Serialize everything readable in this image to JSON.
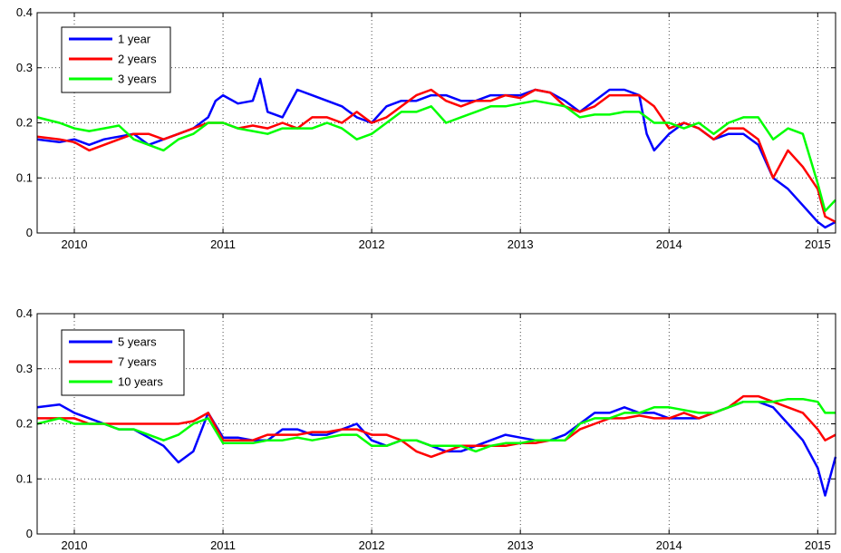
{
  "chart_data": [
    {
      "type": "line",
      "title": "",
      "xlabel": "",
      "ylabel": "",
      "xlim": [
        2009.75,
        2015.12
      ],
      "ylim": [
        0,
        0.4
      ],
      "xticks": [
        2010,
        2011,
        2012,
        2013,
        2014,
        2015
      ],
      "xtick_labels": [
        "2010",
        "2011",
        "2012",
        "2013",
        "2014",
        "2015"
      ],
      "yticks": [
        0,
        0.1,
        0.2,
        0.3,
        0.4
      ],
      "ytick_labels": [
        "0",
        "0.1",
        "0.2",
        "0.3",
        "0.4"
      ],
      "grid": true,
      "legend_position": "top-left",
      "series": [
        {
          "name": "1 year",
          "color": "#0000ff",
          "x": [
            2009.75,
            2009.9,
            2010.0,
            2010.1,
            2010.2,
            2010.3,
            2010.4,
            2010.5,
            2010.6,
            2010.7,
            2010.8,
            2010.9,
            2010.95,
            2011.0,
            2011.1,
            2011.2,
            2011.25,
            2011.3,
            2011.4,
            2011.5,
            2011.6,
            2011.7,
            2011.8,
            2011.9,
            2012.0,
            2012.1,
            2012.2,
            2012.3,
            2012.4,
            2012.5,
            2012.6,
            2012.7,
            2012.8,
            2012.9,
            2013.0,
            2013.1,
            2013.2,
            2013.3,
            2013.4,
            2013.5,
            2013.6,
            2013.7,
            2013.8,
            2013.85,
            2013.9,
            2014.0,
            2014.1,
            2014.2,
            2014.3,
            2014.4,
            2014.5,
            2014.6,
            2014.7,
            2014.8,
            2014.9,
            2015.0,
            2015.05,
            2015.12
          ],
          "y": [
            0.17,
            0.165,
            0.17,
            0.16,
            0.17,
            0.175,
            0.18,
            0.16,
            0.17,
            0.18,
            0.19,
            0.21,
            0.24,
            0.25,
            0.235,
            0.24,
            0.28,
            0.22,
            0.21,
            0.26,
            0.25,
            0.24,
            0.23,
            0.21,
            0.2,
            0.23,
            0.24,
            0.24,
            0.25,
            0.25,
            0.24,
            0.24,
            0.25,
            0.25,
            0.25,
            0.26,
            0.255,
            0.24,
            0.22,
            0.24,
            0.26,
            0.26,
            0.25,
            0.18,
            0.15,
            0.18,
            0.2,
            0.19,
            0.17,
            0.18,
            0.18,
            0.16,
            0.1,
            0.08,
            0.05,
            0.02,
            0.01,
            0.02
          ]
        },
        {
          "name": "2 years",
          "color": "#ff0000",
          "x": [
            2009.75,
            2009.9,
            2010.0,
            2010.1,
            2010.2,
            2010.3,
            2010.4,
            2010.5,
            2010.6,
            2010.7,
            2010.8,
            2010.9,
            2011.0,
            2011.1,
            2011.2,
            2011.3,
            2011.4,
            2011.5,
            2011.6,
            2011.7,
            2011.8,
            2011.9,
            2012.0,
            2012.1,
            2012.2,
            2012.3,
            2012.4,
            2012.5,
            2012.6,
            2012.7,
            2012.8,
            2012.9,
            2013.0,
            2013.1,
            2013.2,
            2013.3,
            2013.4,
            2013.5,
            2013.6,
            2013.7,
            2013.8,
            2013.9,
            2014.0,
            2014.1,
            2014.2,
            2014.3,
            2014.4,
            2014.5,
            2014.6,
            2014.7,
            2014.8,
            2014.9,
            2015.0,
            2015.05,
            2015.12
          ],
          "y": [
            0.175,
            0.17,
            0.165,
            0.15,
            0.16,
            0.17,
            0.18,
            0.18,
            0.17,
            0.18,
            0.19,
            0.2,
            0.2,
            0.19,
            0.195,
            0.19,
            0.2,
            0.19,
            0.21,
            0.21,
            0.2,
            0.22,
            0.2,
            0.21,
            0.23,
            0.25,
            0.26,
            0.24,
            0.23,
            0.24,
            0.24,
            0.25,
            0.245,
            0.26,
            0.255,
            0.23,
            0.22,
            0.23,
            0.25,
            0.25,
            0.25,
            0.23,
            0.19,
            0.2,
            0.19,
            0.17,
            0.19,
            0.19,
            0.17,
            0.1,
            0.15,
            0.12,
            0.08,
            0.03,
            0.02
          ]
        },
        {
          "name": "3 years",
          "color": "#00ff00",
          "x": [
            2009.75,
            2009.9,
            2010.0,
            2010.1,
            2010.2,
            2010.3,
            2010.4,
            2010.5,
            2010.6,
            2010.7,
            2010.8,
            2010.9,
            2011.0,
            2011.1,
            2011.2,
            2011.3,
            2011.4,
            2011.5,
            2011.6,
            2011.7,
            2011.8,
            2011.9,
            2012.0,
            2012.1,
            2012.2,
            2012.3,
            2012.4,
            2012.5,
            2012.6,
            2012.7,
            2012.8,
            2012.9,
            2013.0,
            2013.1,
            2013.2,
            2013.3,
            2013.4,
            2013.5,
            2013.6,
            2013.7,
            2013.8,
            2013.9,
            2014.0,
            2014.1,
            2014.2,
            2014.3,
            2014.4,
            2014.5,
            2014.6,
            2014.7,
            2014.8,
            2014.9,
            2015.0,
            2015.05,
            2015.12
          ],
          "y": [
            0.21,
            0.2,
            0.19,
            0.185,
            0.19,
            0.195,
            0.17,
            0.16,
            0.15,
            0.17,
            0.18,
            0.2,
            0.2,
            0.19,
            0.185,
            0.18,
            0.19,
            0.19,
            0.19,
            0.2,
            0.19,
            0.17,
            0.18,
            0.2,
            0.22,
            0.22,
            0.23,
            0.2,
            0.21,
            0.22,
            0.23,
            0.23,
            0.235,
            0.24,
            0.235,
            0.23,
            0.21,
            0.215,
            0.215,
            0.22,
            0.22,
            0.2,
            0.2,
            0.19,
            0.2,
            0.18,
            0.2,
            0.21,
            0.21,
            0.17,
            0.19,
            0.18,
            0.09,
            0.04,
            0.06
          ]
        }
      ]
    },
    {
      "type": "line",
      "title": "",
      "xlabel": "",
      "ylabel": "",
      "xlim": [
        2009.75,
        2015.12
      ],
      "ylim": [
        0,
        0.4
      ],
      "xticks": [
        2010,
        2011,
        2012,
        2013,
        2014,
        2015
      ],
      "xtick_labels": [
        "2010",
        "2011",
        "2012",
        "2013",
        "2014",
        "2015"
      ],
      "yticks": [
        0,
        0.1,
        0.2,
        0.3,
        0.4
      ],
      "ytick_labels": [
        "0",
        "0.1",
        "0.2",
        "0.3",
        "0.4"
      ],
      "grid": true,
      "legend_position": "top-left",
      "series": [
        {
          "name": "5 years",
          "color": "#0000ff",
          "x": [
            2009.75,
            2009.9,
            2010.0,
            2010.1,
            2010.2,
            2010.3,
            2010.4,
            2010.5,
            2010.6,
            2010.7,
            2010.8,
            2010.9,
            2011.0,
            2011.1,
            2011.2,
            2011.3,
            2011.4,
            2011.5,
            2011.6,
            2011.7,
            2011.8,
            2011.9,
            2012.0,
            2012.1,
            2012.2,
            2012.3,
            2012.4,
            2012.5,
            2012.6,
            2012.7,
            2012.8,
            2012.9,
            2013.0,
            2013.1,
            2013.2,
            2013.3,
            2013.4,
            2013.5,
            2013.6,
            2013.7,
            2013.8,
            2013.9,
            2014.0,
            2014.1,
            2014.2,
            2014.3,
            2014.4,
            2014.5,
            2014.6,
            2014.7,
            2014.8,
            2014.9,
            2015.0,
            2015.05,
            2015.12
          ],
          "y": [
            0.23,
            0.235,
            0.22,
            0.21,
            0.2,
            0.19,
            0.19,
            0.175,
            0.16,
            0.13,
            0.15,
            0.22,
            0.175,
            0.175,
            0.17,
            0.17,
            0.19,
            0.19,
            0.18,
            0.18,
            0.19,
            0.2,
            0.17,
            0.16,
            0.17,
            0.17,
            0.16,
            0.15,
            0.15,
            0.16,
            0.17,
            0.18,
            0.175,
            0.17,
            0.17,
            0.18,
            0.2,
            0.22,
            0.22,
            0.23,
            0.22,
            0.22,
            0.21,
            0.21,
            0.21,
            0.22,
            0.23,
            0.24,
            0.24,
            0.23,
            0.2,
            0.17,
            0.12,
            0.07,
            0.14
          ]
        },
        {
          "name": "7 years",
          "color": "#ff0000",
          "x": [
            2009.75,
            2009.9,
            2010.0,
            2010.1,
            2010.2,
            2010.3,
            2010.4,
            2010.5,
            2010.6,
            2010.7,
            2010.8,
            2010.9,
            2011.0,
            2011.1,
            2011.2,
            2011.3,
            2011.4,
            2011.5,
            2011.6,
            2011.7,
            2011.8,
            2011.9,
            2012.0,
            2012.1,
            2012.2,
            2012.3,
            2012.4,
            2012.5,
            2012.6,
            2012.7,
            2012.8,
            2012.9,
            2013.0,
            2013.1,
            2013.2,
            2013.3,
            2013.4,
            2013.5,
            2013.6,
            2013.7,
            2013.8,
            2013.9,
            2014.0,
            2014.1,
            2014.2,
            2014.3,
            2014.4,
            2014.5,
            2014.6,
            2014.7,
            2014.8,
            2014.9,
            2015.0,
            2015.05,
            2015.12
          ],
          "y": [
            0.21,
            0.21,
            0.21,
            0.2,
            0.2,
            0.2,
            0.2,
            0.2,
            0.2,
            0.2,
            0.205,
            0.22,
            0.17,
            0.17,
            0.17,
            0.18,
            0.18,
            0.18,
            0.185,
            0.185,
            0.19,
            0.19,
            0.18,
            0.18,
            0.17,
            0.15,
            0.14,
            0.15,
            0.16,
            0.16,
            0.16,
            0.16,
            0.165,
            0.165,
            0.17,
            0.17,
            0.19,
            0.2,
            0.21,
            0.21,
            0.215,
            0.21,
            0.21,
            0.22,
            0.21,
            0.22,
            0.23,
            0.25,
            0.25,
            0.24,
            0.23,
            0.22,
            0.19,
            0.17,
            0.18
          ]
        },
        {
          "name": "10 years",
          "color": "#00ff00",
          "x": [
            2009.75,
            2009.9,
            2010.0,
            2010.1,
            2010.2,
            2010.3,
            2010.4,
            2010.5,
            2010.6,
            2010.7,
            2010.8,
            2010.9,
            2011.0,
            2011.1,
            2011.2,
            2011.3,
            2011.4,
            2011.5,
            2011.6,
            2011.7,
            2011.8,
            2011.9,
            2012.0,
            2012.1,
            2012.2,
            2012.3,
            2012.4,
            2012.5,
            2012.6,
            2012.7,
            2012.8,
            2012.9,
            2013.0,
            2013.1,
            2013.2,
            2013.3,
            2013.4,
            2013.5,
            2013.6,
            2013.7,
            2013.8,
            2013.9,
            2014.0,
            2014.1,
            2014.2,
            2014.3,
            2014.4,
            2014.5,
            2014.6,
            2014.7,
            2014.8,
            2014.9,
            2015.0,
            2015.05,
            2015.12
          ],
          "y": [
            0.2,
            0.21,
            0.2,
            0.2,
            0.2,
            0.19,
            0.19,
            0.18,
            0.17,
            0.18,
            0.2,
            0.21,
            0.165,
            0.165,
            0.165,
            0.17,
            0.17,
            0.175,
            0.17,
            0.175,
            0.18,
            0.18,
            0.16,
            0.16,
            0.17,
            0.17,
            0.16,
            0.16,
            0.16,
            0.15,
            0.16,
            0.165,
            0.165,
            0.17,
            0.17,
            0.17,
            0.2,
            0.21,
            0.21,
            0.22,
            0.22,
            0.23,
            0.23,
            0.225,
            0.22,
            0.22,
            0.23,
            0.24,
            0.24,
            0.24,
            0.245,
            0.245,
            0.24,
            0.22,
            0.22
          ]
        }
      ]
    }
  ]
}
